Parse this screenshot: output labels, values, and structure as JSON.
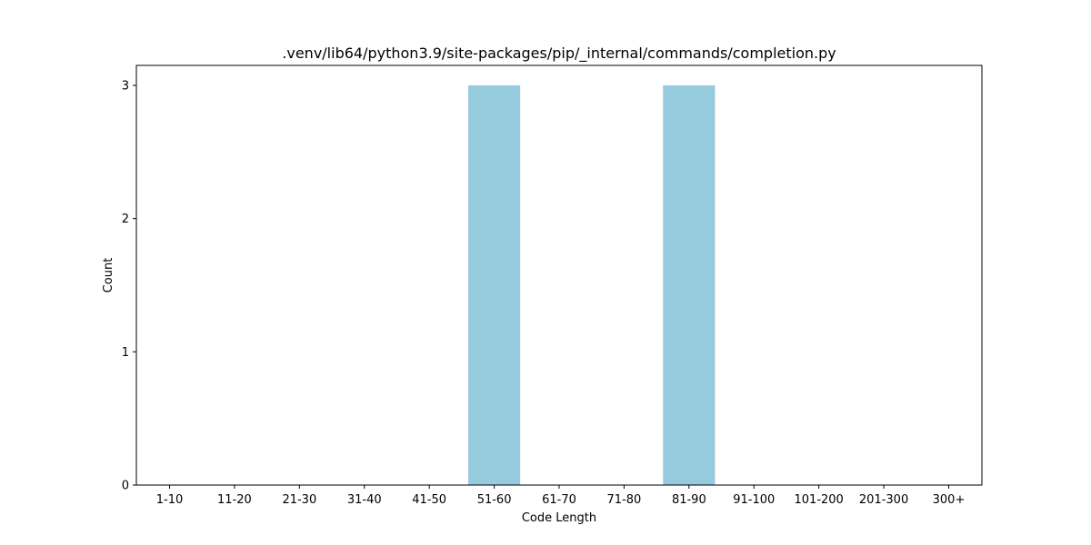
{
  "chart_data": {
    "type": "bar",
    "title": ".venv/lib64/python3.9/site-packages/pip/_internal/commands/completion.py",
    "xlabel": "Code Length",
    "ylabel": "Count",
    "categories": [
      "1-10",
      "11-20",
      "21-30",
      "31-40",
      "41-50",
      "51-60",
      "61-70",
      "71-80",
      "81-90",
      "91-100",
      "101-200",
      "201-300",
      "300+"
    ],
    "values": [
      0,
      0,
      0,
      0,
      0,
      3,
      0,
      0,
      3,
      0,
      0,
      0,
      0
    ],
    "yticks": [
      0,
      1,
      2,
      3
    ],
    "ylim": [
      0,
      3.15
    ],
    "grid": false,
    "bar_color": "#96cadd"
  }
}
